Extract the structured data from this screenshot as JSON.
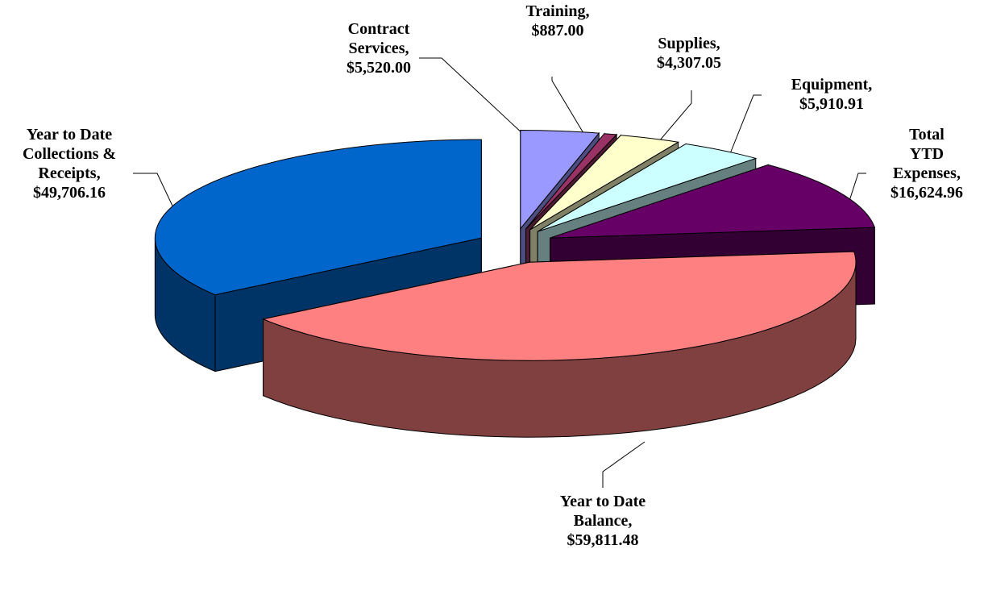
{
  "chart_data": {
    "type": "pie3d",
    "categories": [
      "Contract Services",
      "Training",
      "Supplies",
      "Equipment",
      "Total YTD Expenses",
      "Year to Date Balance",
      "Year to Date Collections  & Receipts"
    ],
    "values": [
      5520.0,
      887.0,
      4307.05,
      5910.91,
      16624.96,
      59811.48,
      49706.16
    ],
    "value_labels": [
      "$5,520.00",
      "$887.00",
      "$4,307.05",
      "$5,910.91",
      "$16,624.96",
      "$59,811.48",
      "$49,706.16"
    ],
    "label_separator": ",",
    "colors": [
      "#9999ff",
      "#993366",
      "#ffffcc",
      "#ccffff",
      "#660066",
      "#ff8080",
      "#0066cc"
    ]
  }
}
